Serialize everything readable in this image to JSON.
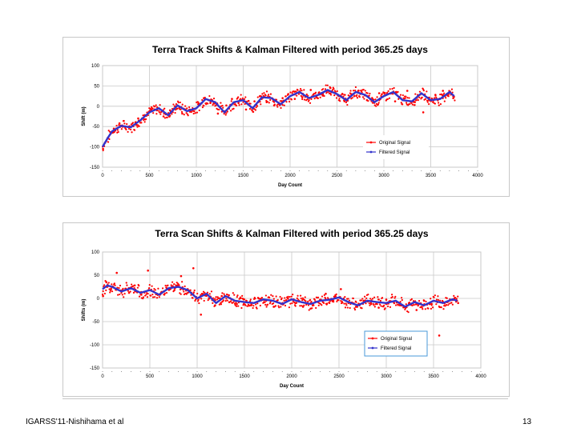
{
  "footer": {
    "left": "IGARSS'11-Nishihama et al",
    "page": "13"
  },
  "colors": {
    "original": "#ff0000",
    "filtered": "#3333cc",
    "grid": "#c8c8c8"
  },
  "chart_data": [
    {
      "type": "scatter",
      "title": "Terra Track Shifts & Kalman Filtered with period 365.25 days",
      "xlabel": "Day Count",
      "ylabel": "Shift (m)",
      "xlim": [
        0,
        4000
      ],
      "ylim": [
        -150,
        100
      ],
      "xticks": [
        0,
        500,
        1000,
        1500,
        2000,
        2500,
        3000,
        3500,
        4000
      ],
      "yticks": [
        -150,
        -100,
        -50,
        0,
        50,
        100
      ],
      "legend": {
        "position": "bottom-right",
        "entries": [
          "Original Signal",
          "Filtered Signal"
        ]
      },
      "series": [
        {
          "name": "Filtered Signal",
          "x": [
            0,
            50,
            100,
            200,
            300,
            400,
            500,
            600,
            700,
            800,
            900,
            1000,
            1100,
            1200,
            1300,
            1400,
            1500,
            1600,
            1700,
            1800,
            1900,
            2000,
            2100,
            2200,
            2300,
            2400,
            2500,
            2600,
            2700,
            2800,
            2900,
            3000,
            3100,
            3200,
            3300,
            3400,
            3500,
            3600,
            3700,
            3750
          ],
          "values": [
            -100,
            -80,
            -62,
            -48,
            -52,
            -35,
            -15,
            -5,
            -22,
            2,
            -12,
            -5,
            18,
            10,
            -15,
            10,
            15,
            -5,
            22,
            20,
            5,
            25,
            35,
            20,
            28,
            40,
            30,
            15,
            35,
            28,
            10,
            25,
            35,
            15,
            12,
            32,
            15,
            18,
            35,
            25
          ]
        },
        {
          "name": "Original Signal",
          "x": [
            5,
            60,
            120,
            180,
            240,
            320,
            380,
            450,
            520,
            580,
            650,
            720,
            780,
            850,
            930,
            1020,
            1080,
            1150,
            1230,
            1320,
            1380,
            1450,
            1530,
            1620,
            1680,
            1750,
            1830,
            1920,
            1980,
            2050,
            2130,
            2220,
            2280,
            2350,
            2430,
            2520,
            2580,
            2650,
            2730,
            2820,
            2880,
            2950,
            3030,
            3120,
            3180,
            3250,
            3330,
            3420,
            3480,
            3550,
            3630,
            3690,
            3740
          ],
          "values": [
            -105,
            -78,
            -55,
            -42,
            -50,
            -48,
            -30,
            -22,
            -8,
            -10,
            -25,
            -10,
            0,
            -18,
            -8,
            5,
            20,
            8,
            -18,
            2,
            18,
            8,
            -8,
            12,
            25,
            10,
            2,
            20,
            30,
            18,
            22,
            40,
            22,
            30,
            45,
            25,
            12,
            30,
            38,
            15,
            18,
            32,
            30,
            12,
            20,
            38,
            10,
            -15,
            15,
            28,
            38,
            30,
            20
          ]
        }
      ]
    },
    {
      "type": "scatter",
      "title": "Terra Scan Shifts & Kalman Filtered with period 365.25 days",
      "xlabel": "Day Count",
      "ylabel": "Shifts (m)",
      "xlim": [
        0,
        4000
      ],
      "ylim": [
        -150,
        100
      ],
      "xticks": [
        0,
        500,
        1000,
        1500,
        2000,
        2500,
        3000,
        3500,
        4000
      ],
      "yticks": [
        -150,
        -100,
        -50,
        0,
        50,
        100
      ],
      "legend": {
        "position": "bottom-right",
        "entries": [
          "Original Signal",
          "Filtered Signal"
        ]
      },
      "series": [
        {
          "name": "Filtered Signal",
          "x": [
            0,
            50,
            100,
            200,
            300,
            400,
            500,
            600,
            700,
            800,
            900,
            1000,
            1100,
            1200,
            1300,
            1400,
            1500,
            1600,
            1700,
            1800,
            1900,
            2000,
            2100,
            2200,
            2300,
            2400,
            2500,
            2600,
            2700,
            2800,
            2900,
            3000,
            3100,
            3200,
            3300,
            3400,
            3500,
            3600,
            3700,
            3750
          ],
          "values": [
            20,
            28,
            25,
            15,
            22,
            12,
            18,
            8,
            22,
            25,
            18,
            0,
            10,
            -10,
            5,
            -5,
            -8,
            -10,
            -2,
            -5,
            -12,
            -2,
            -8,
            -12,
            -5,
            -3,
            2,
            -8,
            -15,
            -5,
            -8,
            -10,
            -5,
            -18,
            -8,
            -15,
            -5,
            -10,
            -2,
            -5
          ]
        },
        {
          "name": "Original Signal",
          "x": [
            5,
            40,
            90,
            150,
            210,
            280,
            340,
            410,
            480,
            540,
            610,
            680,
            760,
            830,
            900,
            960,
            1040,
            1110,
            1190,
            1260,
            1340,
            1420,
            1490,
            1570,
            1650,
            1730,
            1810,
            1890,
            1960,
            2040,
            2120,
            2200,
            2280,
            2360,
            2440,
            2520,
            2600,
            2680,
            2760,
            2840,
            2920,
            3000,
            3080,
            3160,
            3240,
            3320,
            3400,
            3480,
            3560,
            3640,
            3720,
            3760
          ],
          "values": [
            5,
            35,
            20,
            55,
            18,
            12,
            28,
            8,
            60,
            15,
            10,
            22,
            18,
            48,
            20,
            65,
            -35,
            8,
            -15,
            5,
            -8,
            -12,
            -2,
            -15,
            0,
            -5,
            -18,
            -12,
            0,
            -10,
            -18,
            -22,
            -8,
            10,
            -5,
            20,
            -10,
            -18,
            -5,
            -12,
            -20,
            -3,
            -8,
            -15,
            -10,
            -25,
            -5,
            -12,
            -80,
            -8,
            0,
            -10
          ]
        }
      ]
    }
  ]
}
